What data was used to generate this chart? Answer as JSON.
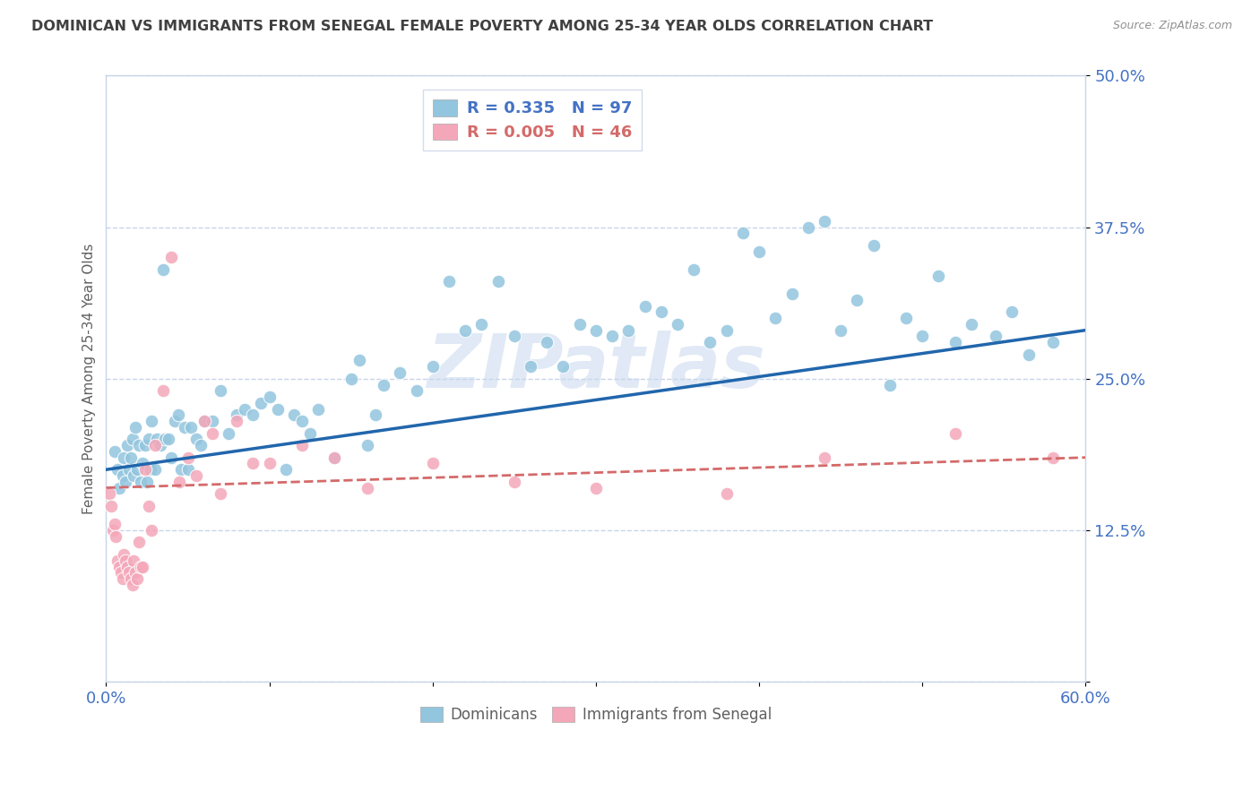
{
  "title": "DOMINICAN VS IMMIGRANTS FROM SENEGAL FEMALE POVERTY AMONG 25-34 YEAR OLDS CORRELATION CHART",
  "source": "Source: ZipAtlas.com",
  "ylabel": "Female Poverty Among 25-34 Year Olds",
  "xlim": [
    0.0,
    0.6
  ],
  "ylim": [
    0.0,
    0.5
  ],
  "xticks": [
    0.0,
    0.1,
    0.2,
    0.3,
    0.4,
    0.5,
    0.6
  ],
  "xticklabels": [
    "0.0%",
    "",
    "",
    "",
    "",
    "",
    "60.0%"
  ],
  "yticks": [
    0.0,
    0.125,
    0.25,
    0.375,
    0.5
  ],
  "yticklabels": [
    "",
    "12.5%",
    "25.0%",
    "37.5%",
    "50.0%"
  ],
  "dominicans_R": 0.335,
  "dominicans_N": 97,
  "senegal_R": 0.005,
  "senegal_N": 46,
  "dom_color": "#92c5de",
  "sen_color": "#f4a7b9",
  "dom_line_color": "#2166ac",
  "sen_line_color": "#d46a6a",
  "background_color": "#ffffff",
  "grid_color": "#c8d4e8",
  "title_color": "#404040",
  "watermark": "ZIPatlas",
  "dom_x": [
    0.005,
    0.007,
    0.008,
    0.01,
    0.011,
    0.012,
    0.013,
    0.014,
    0.015,
    0.016,
    0.017,
    0.018,
    0.019,
    0.02,
    0.021,
    0.022,
    0.024,
    0.025,
    0.026,
    0.027,
    0.028,
    0.03,
    0.031,
    0.033,
    0.035,
    0.036,
    0.038,
    0.04,
    0.042,
    0.044,
    0.046,
    0.048,
    0.05,
    0.052,
    0.055,
    0.058,
    0.06,
    0.065,
    0.07,
    0.075,
    0.08,
    0.085,
    0.09,
    0.095,
    0.1,
    0.105,
    0.11,
    0.115,
    0.12,
    0.125,
    0.13,
    0.14,
    0.15,
    0.155,
    0.16,
    0.165,
    0.17,
    0.18,
    0.19,
    0.2,
    0.21,
    0.22,
    0.23,
    0.24,
    0.25,
    0.26,
    0.27,
    0.28,
    0.29,
    0.3,
    0.31,
    0.32,
    0.33,
    0.34,
    0.35,
    0.36,
    0.37,
    0.38,
    0.39,
    0.4,
    0.41,
    0.42,
    0.43,
    0.44,
    0.45,
    0.46,
    0.47,
    0.48,
    0.49,
    0.5,
    0.51,
    0.52,
    0.53,
    0.545,
    0.555,
    0.565,
    0.58
  ],
  "dom_y": [
    0.19,
    0.175,
    0.16,
    0.17,
    0.185,
    0.165,
    0.195,
    0.175,
    0.185,
    0.2,
    0.17,
    0.21,
    0.175,
    0.195,
    0.165,
    0.18,
    0.195,
    0.165,
    0.2,
    0.175,
    0.215,
    0.175,
    0.2,
    0.195,
    0.34,
    0.2,
    0.2,
    0.185,
    0.215,
    0.22,
    0.175,
    0.21,
    0.175,
    0.21,
    0.2,
    0.195,
    0.215,
    0.215,
    0.24,
    0.205,
    0.22,
    0.225,
    0.22,
    0.23,
    0.235,
    0.225,
    0.175,
    0.22,
    0.215,
    0.205,
    0.225,
    0.185,
    0.25,
    0.265,
    0.195,
    0.22,
    0.245,
    0.255,
    0.24,
    0.26,
    0.33,
    0.29,
    0.295,
    0.33,
    0.285,
    0.26,
    0.28,
    0.26,
    0.295,
    0.29,
    0.285,
    0.29,
    0.31,
    0.305,
    0.295,
    0.34,
    0.28,
    0.29,
    0.37,
    0.355,
    0.3,
    0.32,
    0.375,
    0.38,
    0.29,
    0.315,
    0.36,
    0.245,
    0.3,
    0.285,
    0.335,
    0.28,
    0.295,
    0.285,
    0.305,
    0.27,
    0.28
  ],
  "sen_x": [
    0.002,
    0.003,
    0.004,
    0.005,
    0.006,
    0.007,
    0.008,
    0.009,
    0.01,
    0.011,
    0.012,
    0.013,
    0.014,
    0.015,
    0.016,
    0.017,
    0.018,
    0.019,
    0.02,
    0.021,
    0.022,
    0.024,
    0.026,
    0.028,
    0.03,
    0.035,
    0.04,
    0.045,
    0.05,
    0.055,
    0.06,
    0.065,
    0.07,
    0.08,
    0.09,
    0.1,
    0.12,
    0.14,
    0.16,
    0.2,
    0.25,
    0.3,
    0.38,
    0.44,
    0.52,
    0.58
  ],
  "sen_y": [
    0.155,
    0.145,
    0.125,
    0.13,
    0.12,
    0.1,
    0.095,
    0.09,
    0.085,
    0.105,
    0.1,
    0.095,
    0.09,
    0.085,
    0.08,
    0.1,
    0.09,
    0.085,
    0.115,
    0.095,
    0.095,
    0.175,
    0.145,
    0.125,
    0.195,
    0.24,
    0.35,
    0.165,
    0.185,
    0.17,
    0.215,
    0.205,
    0.155,
    0.215,
    0.18,
    0.18,
    0.195,
    0.185,
    0.16,
    0.18,
    0.165,
    0.16,
    0.155,
    0.185,
    0.205,
    0.185
  ],
  "dom_line_x0": 0.0,
  "dom_line_x1": 0.6,
  "dom_line_y0": 0.175,
  "dom_line_y1": 0.29,
  "sen_line_x0": 0.0,
  "sen_line_x1": 0.6,
  "sen_line_y0": 0.16,
  "sen_line_y1": 0.185
}
